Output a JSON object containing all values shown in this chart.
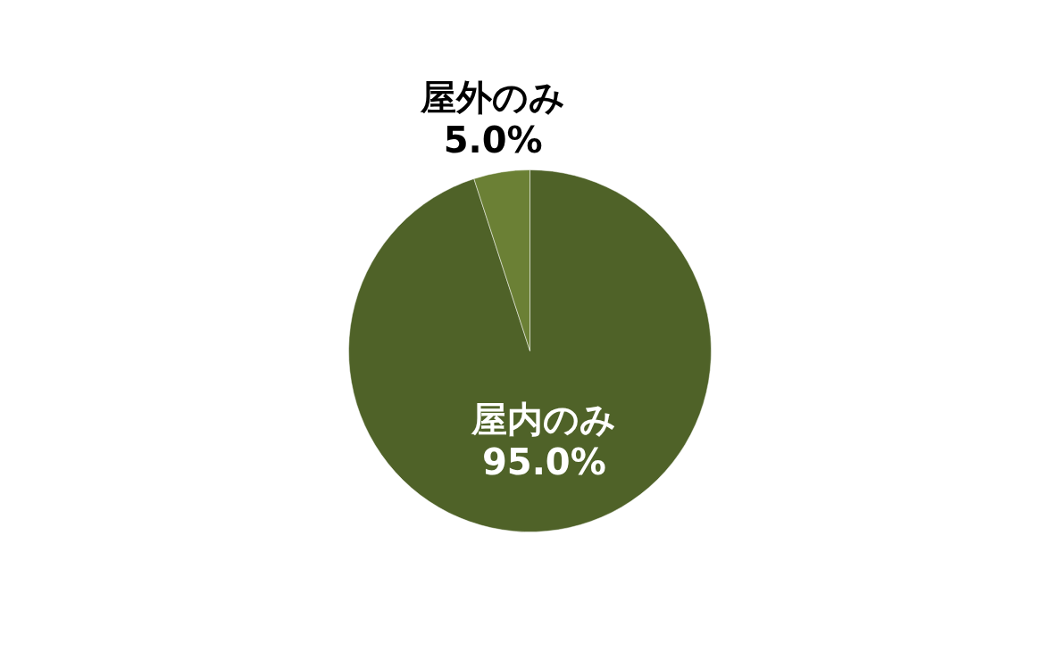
{
  "chart_data": {
    "type": "pie",
    "categories": [
      "屋内のみ",
      "屋外のみ"
    ],
    "values": [
      95.0,
      5.0
    ],
    "colors": [
      "#4f6228",
      "#6b8035"
    ],
    "value_labels": [
      "95.0%",
      "5.0%"
    ]
  }
}
